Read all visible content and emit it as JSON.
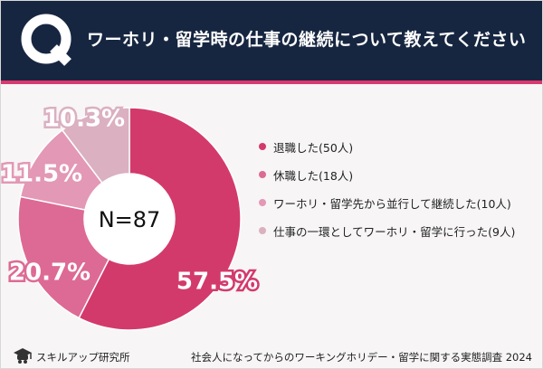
{
  "header": {
    "q_label": "Q",
    "question": "ワーホリ・留学時の仕事の継続について教えてください"
  },
  "chart_data": {
    "type": "pie",
    "style": "donut",
    "center_label": "N=87",
    "categories": [
      "退職した(50人)",
      "休職した(18人)",
      "ワーホリ・留学先から並行して継続した(10人)",
      "仕事の一環としてワーホリ・留学に行った(9人)"
    ],
    "values": [
      57.5,
      20.7,
      11.5,
      10.3
    ],
    "counts": [
      50,
      18,
      10,
      9
    ],
    "value_labels": [
      "57.5%",
      "20.7%",
      "11.5%",
      "10.3%"
    ],
    "colors": [
      "#d33a6c",
      "#dd6a94",
      "#e398b5",
      "#dbb0c0"
    ],
    "legend_position": "right"
  },
  "footer": {
    "brand": "スキルアップ研究所",
    "source": "社会人になってからのワーキングホリデー・留学に関する実態調査 2024"
  }
}
